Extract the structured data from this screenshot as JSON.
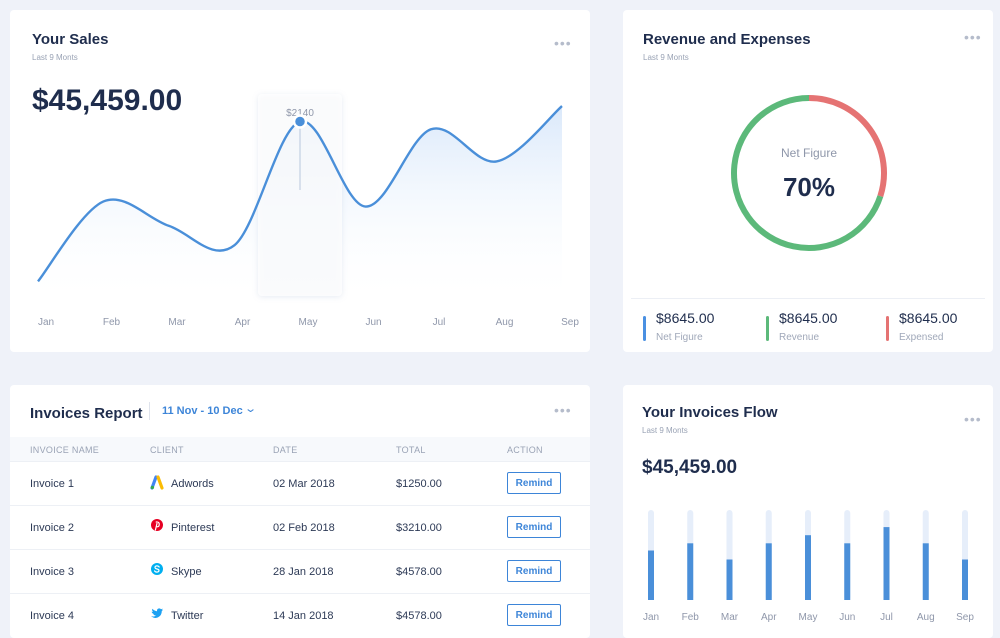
{
  "sales": {
    "title": "Your Sales",
    "subtitle": "Last 9 Monts",
    "amount": "$45,459.00",
    "tooltip": "$2140",
    "menu_icon": "ellipsis-icon"
  },
  "revenue": {
    "title": "Revenue and Expenses",
    "subtitle": "Last 9 Monts",
    "center_caption": "Net Figure",
    "center_value": "70%",
    "stats": [
      {
        "amount": "$8645.00",
        "label": "Net Figure",
        "color": "#4a90e2"
      },
      {
        "amount": "$8645.00",
        "label": "Revenue",
        "color": "#5cb97a"
      },
      {
        "amount": "$8645.00",
        "label": "Expensed",
        "color": "#e57373"
      }
    ]
  },
  "invoices": {
    "title": "Invoices Report",
    "date_range": "11 Nov - 10 Dec",
    "columns": [
      "INVOICE NAME",
      "CLIENT",
      "DATE",
      "TOTAL",
      "ACTION"
    ],
    "rows": [
      {
        "name": "Invoice 1",
        "client": "Adwords",
        "client_icon": "adwords-icon",
        "date": "02 Mar 2018",
        "total": "$1250.00",
        "action": "Remind"
      },
      {
        "name": "Invoice 2",
        "client": "Pinterest",
        "client_icon": "pinterest-icon",
        "date": "02 Feb 2018",
        "total": "$3210.00",
        "action": "Remind"
      },
      {
        "name": "Invoice 3",
        "client": "Skype",
        "client_icon": "skype-icon",
        "date": "28 Jan 2018",
        "total": "$4578.00",
        "action": "Remind"
      },
      {
        "name": "Invoice 4",
        "client": "Twitter",
        "client_icon": "twitter-icon",
        "date": "14 Jan 2018",
        "total": "$4578.00",
        "action": "Remind"
      }
    ]
  },
  "flow": {
    "title": "Your Invoices Flow",
    "subtitle": "Last 9 Monts",
    "amount": "$45,459.00"
  },
  "colors": {
    "accent": "#3d85d8",
    "line": "#4a8fd9",
    "green": "#5cb97a",
    "red": "#e57373",
    "bar_bg": "#e6eefa"
  },
  "chart_data": [
    {
      "type": "line",
      "title": "Your Sales",
      "categories": [
        "Jan",
        "Feb",
        "Mar",
        "Apr",
        "May",
        "Jun",
        "Jul",
        "Aug",
        "Sep"
      ],
      "values": [
        900,
        1520,
        1330,
        1180,
        2140,
        1480,
        2080,
        1830,
        2260
      ],
      "highlight": {
        "category": "May",
        "label": "$2140"
      },
      "ylim": [
        600,
        2400
      ],
      "grid": false
    },
    {
      "type": "pie",
      "title": "Revenue and Expenses",
      "slices": [
        {
          "name": "Revenue",
          "value": 70,
          "color": "#5cb97a"
        },
        {
          "name": "Expensed",
          "value": 30,
          "color": "#e57373"
        }
      ]
    },
    {
      "type": "bar",
      "title": "Your Invoices Flow",
      "categories": [
        "Jan",
        "Feb",
        "Mar",
        "Apr",
        "May",
        "Jun",
        "Jul",
        "Aug",
        "Sep"
      ],
      "values": [
        55,
        63,
        45,
        63,
        72,
        63,
        81,
        63,
        45
      ],
      "ylim": [
        0,
        100
      ]
    }
  ]
}
